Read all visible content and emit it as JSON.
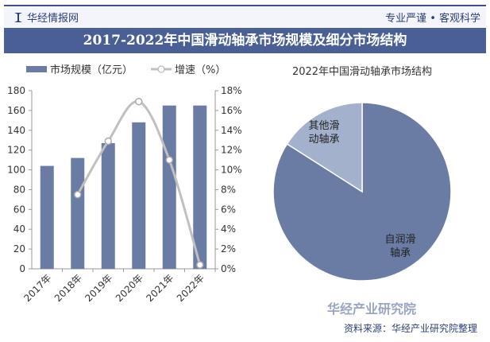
{
  "header": {
    "brand": "华经情报网",
    "slogan": "专业严谨 • 客观科学",
    "title": "2017-2022年中国滑动轴承市场规模及细分市场结构"
  },
  "footer": {
    "logo": "华经产业研究院",
    "source": "资料来源：华经产业研究院整理"
  },
  "colors": {
    "bar": "#6a7ca4",
    "line": "#c0c0c0",
    "pie_main": "#6a7ca4",
    "pie_other": "#a4b1cc",
    "title_bg": "#4a5f95"
  },
  "chart_data": [
    {
      "type": "bar+line",
      "categories": [
        "2017年",
        "2018年",
        "2019年",
        "2020年",
        "2021年",
        "2022年"
      ],
      "series": [
        {
          "name": "市场规模（亿元）",
          "type": "bar",
          "axis": "left",
          "values": [
            104,
            112,
            127,
            148,
            165,
            165
          ]
        },
        {
          "name": "增速（%）",
          "type": "line",
          "axis": "right",
          "values": [
            null,
            7.5,
            12.9,
            16.9,
            11.0,
            0.4
          ]
        }
      ],
      "ylim": [
        0,
        180
      ],
      "yticks": [
        "0",
        "20",
        "40",
        "60",
        "80",
        "100",
        "120",
        "140",
        "160",
        "180"
      ],
      "y2lim": [
        0,
        18
      ],
      "y2ticks": [
        "0%",
        "2%",
        "4%",
        "6%",
        "8%",
        "10%",
        "12%",
        "14%",
        "16%",
        "18%"
      ],
      "legend": "top"
    },
    {
      "type": "pie",
      "title": "2022年中国滑动轴承市场结构",
      "slices": [
        {
          "label": "自润滑轴承",
          "value": 84
        },
        {
          "label": "其他滑动轴承",
          "value": 16
        }
      ]
    }
  ]
}
